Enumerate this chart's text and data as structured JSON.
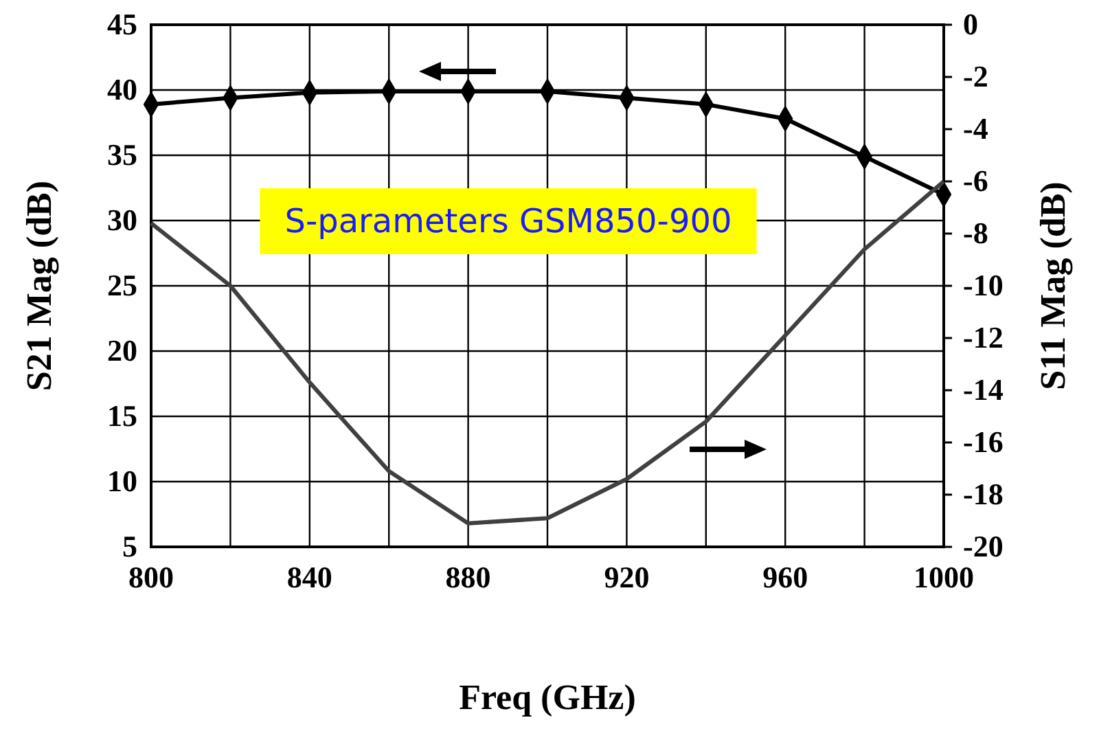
{
  "chart_data": {
    "type": "line",
    "xlabel": "Freq  (GHz)",
    "ylabel": "S21 Mag (dB)",
    "y2label": "S11 Mag (dB)",
    "x": [
      800,
      820,
      840,
      860,
      880,
      900,
      920,
      940,
      960,
      980,
      1000
    ],
    "series": [
      {
        "color": "#000000",
        "marker": "diamond",
        "values": [
          38.9,
          39.4,
          39.8,
          39.9,
          39.9,
          39.9,
          39.4,
          38.9,
          37.8,
          34.9,
          32
        ]
      },
      {
        "color": "#404040",
        "axis": "y2",
        "marker": "none",
        "values": [
          -7.6,
          -10,
          -13.7,
          -17.1,
          -19.1,
          -18.9,
          -17.4,
          -15.2,
          -11.9,
          -8.6,
          -6
        ]
      }
    ],
    "xlim": [
      800,
      1000
    ],
    "xticks": [
      800,
      840,
      880,
      920,
      960,
      1000
    ],
    "ylim": [
      5,
      45
    ],
    "yticks": [
      5,
      10,
      15,
      20,
      25,
      30,
      35,
      40,
      45
    ],
    "y2lim": [
      -20,
      0
    ],
    "y2ticks": [
      -20,
      -18,
      -16,
      -14,
      -12,
      -10,
      -8,
      -6,
      -4,
      -2,
      0
    ],
    "grid": true,
    "annotations": [
      "S-parameters GSM850-900"
    ]
  }
}
